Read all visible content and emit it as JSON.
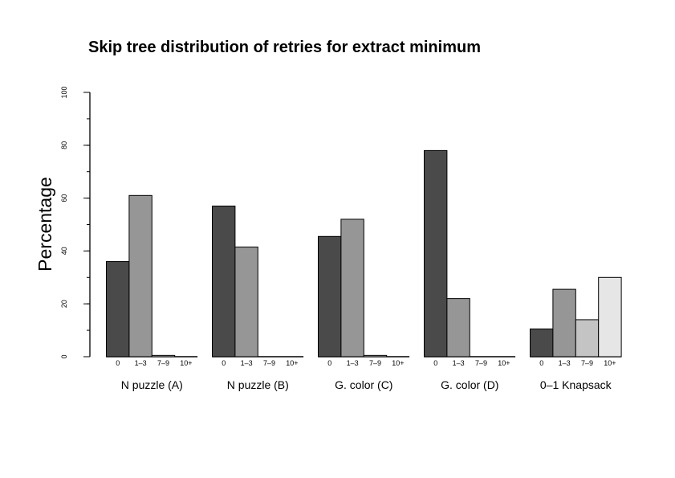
{
  "chart_data": {
    "type": "bar",
    "title": "Skip tree distribution of retries for extract minimum",
    "ylabel": "Percentage",
    "xlabel": "",
    "ylim": [
      0,
      100
    ],
    "yticks": [
      "0",
      "20",
      "40",
      "60",
      "80",
      "100"
    ],
    "categories": [
      "0",
      "1–3",
      "7–9",
      "10+"
    ],
    "colors": [
      "#4a4a4a",
      "#969696",
      "#c4c4c4",
      "#e6e6e6"
    ],
    "grid": false,
    "groups": [
      {
        "name": "N puzzle (A)",
        "values": [
          36,
          61,
          0.5,
          0
        ]
      },
      {
        "name": "N puzzle (B)",
        "values": [
          57,
          41.5,
          0,
          0
        ]
      },
      {
        "name": "G. color (C)",
        "values": [
          45.5,
          52,
          0.5,
          0
        ]
      },
      {
        "name": "G. color (D)",
        "values": [
          78,
          22,
          0,
          0
        ]
      },
      {
        "name": "0–1 Knapsack",
        "values": [
          10.5,
          25.5,
          14,
          30
        ]
      }
    ]
  }
}
